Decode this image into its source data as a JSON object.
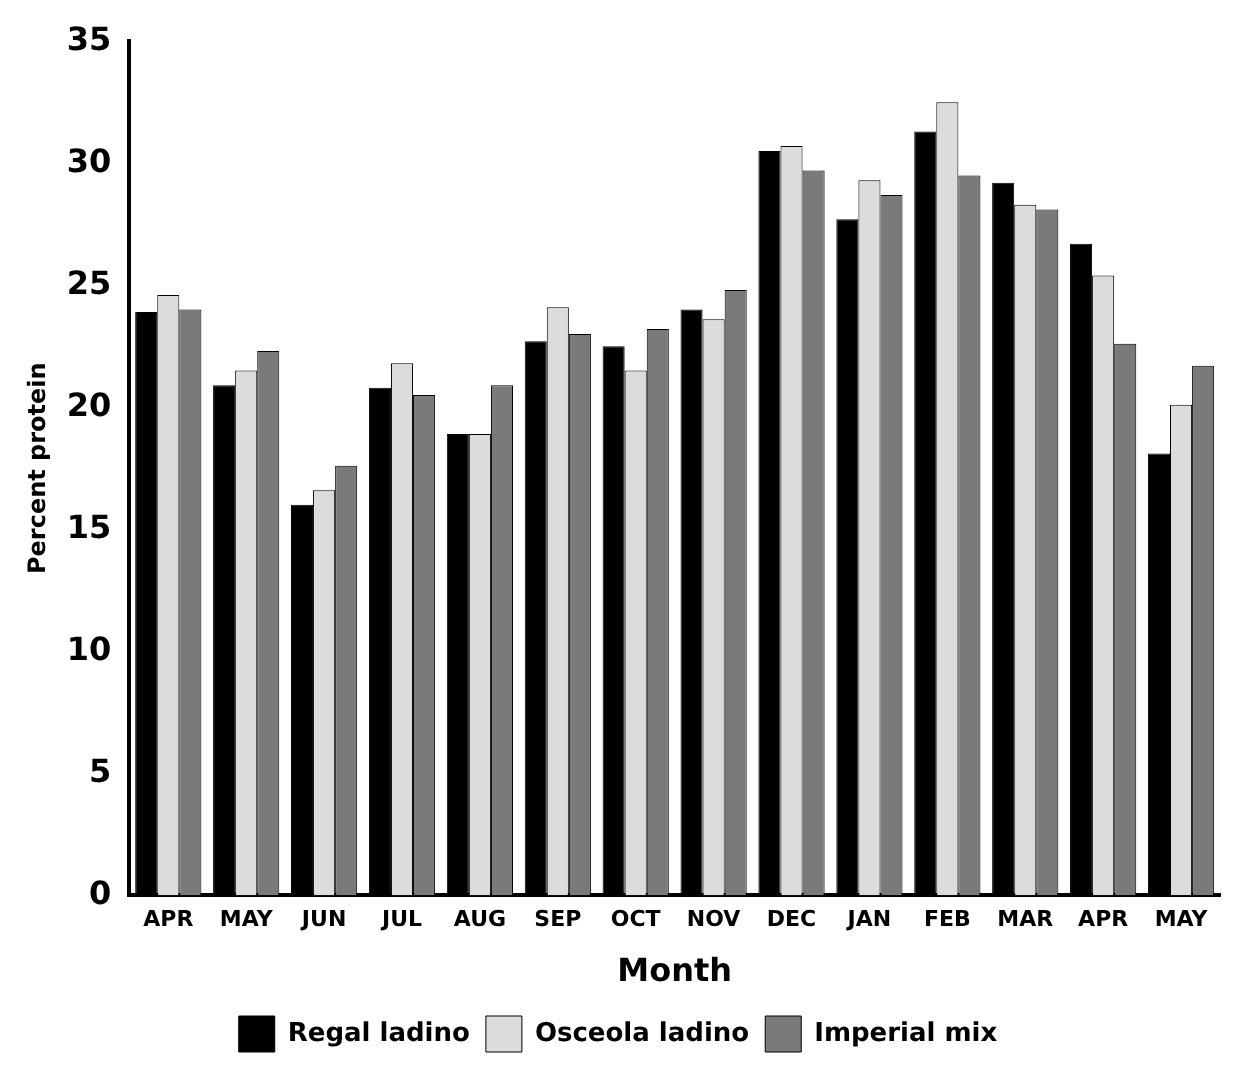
{
  "chart_data": {
    "type": "bar",
    "xlabel": "Month",
    "ylabel": "Percent protein",
    "categories": [
      "APR",
      "MAY",
      "JUN",
      "JUL",
      "AUG",
      "SEP",
      "OCT",
      "NOV",
      "DEC",
      "JAN",
      "FEB",
      "MAR",
      "APR",
      "MAY"
    ],
    "series": [
      {
        "name": "Regal ladino",
        "color": "#000000",
        "values": [
          23.9,
          20.9,
          16.0,
          20.8,
          18.9,
          22.7,
          22.5,
          24.0,
          30.5,
          27.7,
          31.3,
          29.2,
          26.7,
          18.1
        ]
      },
      {
        "name": "Osceola ladino",
        "color": "#dcdcdc",
        "values": [
          24.6,
          21.5,
          16.6,
          21.8,
          18.9,
          24.1,
          21.5,
          23.6,
          30.7,
          29.3,
          32.5,
          28.3,
          25.4,
          20.1
        ]
      },
      {
        "name": "Imperial mix",
        "color": "#7a7a7a",
        "values": [
          24.0,
          22.3,
          17.6,
          20.5,
          20.9,
          23.0,
          23.2,
          24.8,
          29.7,
          28.7,
          29.5,
          28.1,
          22.6,
          21.7
        ]
      }
    ],
    "ylim": [
      0,
      35
    ],
    "yticks": [
      0,
      5,
      10,
      15,
      20,
      25,
      30,
      35
    ],
    "grid": false,
    "legend": "bottom"
  }
}
